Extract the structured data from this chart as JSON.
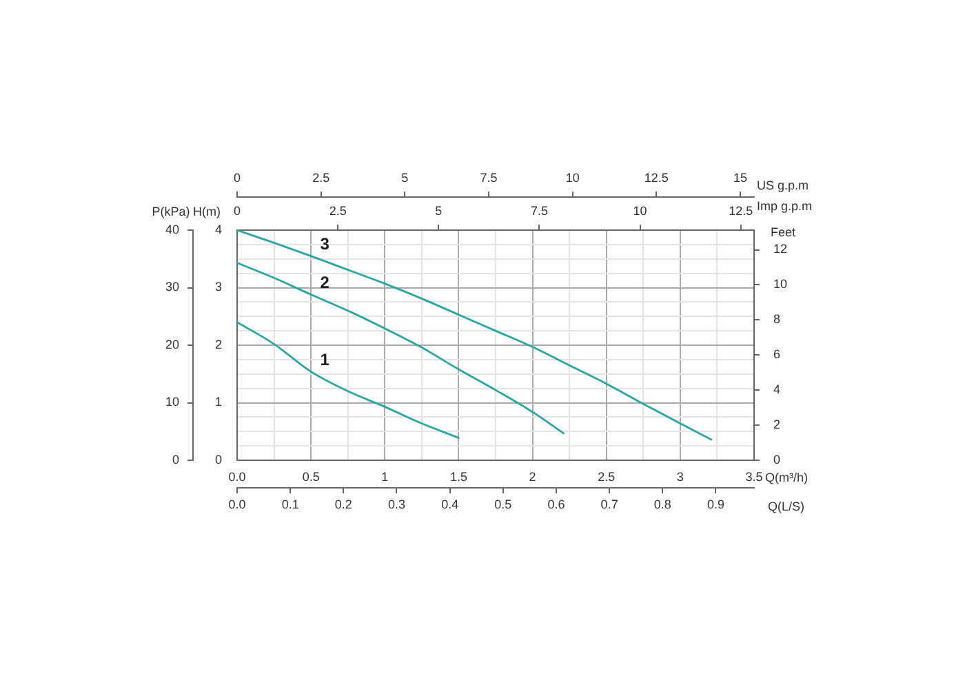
{
  "chart_data": [
    {
      "type": "line",
      "xlabel": "Q(m³/h)",
      "x2label": "Imp g.p.m",
      "ylabel": "H(m)",
      "y2label": "P(kPa)",
      "y3label": "Feet",
      "xlim": [
        0,
        3.5
      ],
      "xticks": [
        {
          "value": 0,
          "label": "0.0"
        },
        {
          "value": 0.25,
          "label": null
        },
        0.5,
        {
          "value": 0.75,
          "label": null
        },
        1,
        {
          "value": 1.25,
          "label": null
        },
        1.5,
        {
          "value": 1.75,
          "label": null
        },
        2,
        {
          "value": 2.25,
          "label": null
        },
        2.5,
        {
          "value": 2.75,
          "label": null
        },
        3,
        {
          "value": 3.25,
          "label": null
        },
        3.5
      ],
      "x2lim": [
        0,
        12.83
      ],
      "x2ticks": [
        0,
        2.5,
        5,
        7.5,
        10,
        12.5
      ],
      "ylim": [
        0,
        4
      ],
      "yticks": [
        0,
        {
          "value": 0.25,
          "label": null
        },
        {
          "value": 0.5,
          "label": null
        },
        {
          "value": 0.75,
          "label": null
        },
        1,
        {
          "value": 1.25,
          "label": null
        },
        {
          "value": 1.5,
          "label": null
        },
        {
          "value": 1.75,
          "label": null
        },
        2,
        {
          "value": 2.25,
          "label": null
        },
        {
          "value": 2.5,
          "label": null
        },
        {
          "value": 2.75,
          "label": null
        },
        3,
        {
          "value": 3.25,
          "label": null
        },
        {
          "value": 3.5,
          "label": null
        },
        {
          "value": 3.75,
          "label": null
        },
        4
      ],
      "y2lim": [
        0,
        40
      ],
      "y2ticks": [
        0,
        10,
        20,
        30,
        40
      ],
      "y3lim": [
        0,
        13.12
      ],
      "y3ticks": [
        0,
        2,
        4,
        6,
        8,
        10,
        12
      ],
      "grid": true,
      "series": [
        {
          "name": "1",
          "color": "#2ba6a3",
          "x": [
            0,
            0.25,
            0.5,
            0.75,
            1,
            1.25,
            1.5
          ],
          "values": [
            2.4,
            2.02,
            1.54,
            1.2,
            0.93,
            0.64,
            0.39
          ]
        },
        {
          "name": "2",
          "color": "#2ba6a3",
          "x": [
            0,
            0.25,
            0.5,
            0.75,
            1,
            1.25,
            1.5,
            1.75,
            2,
            2.21
          ],
          "values": [
            3.43,
            3.17,
            2.88,
            2.6,
            2.29,
            1.96,
            1.58,
            1.22,
            0.84,
            0.47
          ]
        },
        {
          "name": "3",
          "color": "#2ba6a3",
          "x": [
            0,
            0.25,
            0.5,
            0.75,
            1,
            1.25,
            1.5,
            1.75,
            2,
            2.25,
            2.5,
            2.75,
            3,
            3.21
          ],
          "values": [
            4.0,
            3.78,
            3.55,
            3.31,
            3.07,
            2.81,
            2.53,
            2.25,
            1.97,
            1.65,
            1.33,
            0.98,
            0.64,
            0.36
          ]
        }
      ]
    },
    {
      "type": "line",
      "xlabel": "Q(L/S)",
      "x2label": "US g.p.m",
      "xlim": [
        0,
        0.972
      ],
      "xticks": [
        {
          "value": 0,
          "label": "0.0"
        },
        0.1,
        0.2,
        0.3,
        0.4,
        0.5,
        0.6,
        0.7,
        0.8,
        0.9
      ],
      "x2lim": [
        0,
        15.41
      ],
      "x2ticks": [
        0,
        2.5,
        5,
        7.5,
        10,
        12.5,
        15
      ],
      "ylim": [
        0,
        4
      ],
      "tick_labels": "x"
    }
  ]
}
